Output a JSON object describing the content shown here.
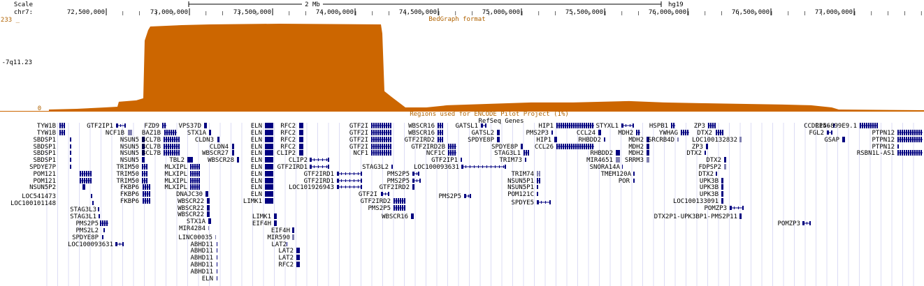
{
  "colors": {
    "signal": "#cc6600",
    "gene": "#000080",
    "gene_light": "#8080b0",
    "grid": "#dcdcf5",
    "text_orange": "#b06200"
  },
  "ruler": {
    "scale_label": "Scale",
    "scale_value": "2 Mb",
    "assembly": "hg19",
    "chrom_label": "chr7:",
    "ticks": [
      "72,500,000",
      "73,000,000",
      "73,500,000",
      "74,000,000",
      "74,500,000",
      "75,000,000",
      "75,500,000",
      "76,000,000",
      "76,500,000",
      "77,000,000"
    ]
  },
  "bedgraph": {
    "track_name": "-7q11.23",
    "max_label": "233 _",
    "min_label": "0 _",
    "format_label": "BedGraph format",
    "profile": [
      [
        70,
        2
      ],
      [
        110,
        3
      ],
      [
        130,
        4
      ],
      [
        150,
        5
      ],
      [
        168,
        6
      ],
      [
        170,
        13
      ],
      [
        195,
        15
      ],
      [
        205,
        18
      ],
      [
        207,
        100
      ],
      [
        212,
        115
      ],
      [
        215,
        120
      ],
      [
        260,
        122
      ],
      [
        300,
        123
      ],
      [
        400,
        124
      ],
      [
        545,
        123
      ],
      [
        547,
        110
      ],
      [
        550,
        28
      ],
      [
        560,
        20
      ],
      [
        580,
        5
      ],
      [
        610,
        5
      ],
      [
        640,
        8
      ],
      [
        700,
        10
      ],
      [
        760,
        12
      ],
      [
        820,
        12
      ],
      [
        860,
        13
      ],
      [
        900,
        14
      ],
      [
        950,
        12
      ],
      [
        1000,
        11
      ],
      [
        1060,
        10
      ],
      [
        1120,
        9
      ],
      [
        1160,
        8
      ],
      [
        1190,
        5
      ],
      [
        1200,
        2
      ],
      [
        1322,
        1
      ]
    ]
  },
  "encode_label": "Regions used for ENCODE Pilot Project (1%)",
  "refseq_label": "RefSeq Genes",
  "genes": [
    {
      "name": "TYW1B",
      "c": 0
    },
    {
      "name": "TYW1B",
      "c": 0
    },
    {
      "name": "SBDSP1",
      "c": 0
    },
    {
      "name": "SBDSP1",
      "c": 0
    },
    {
      "name": "SBDSP1",
      "c": 0
    },
    {
      "name": "SBDSP1",
      "c": 0
    },
    {
      "name": "SPDYE7P",
      "c": 0
    },
    {
      "name": "POM121",
      "c": 0
    },
    {
      "name": "POM121",
      "c": 0
    },
    {
      "name": "NSUN5P2",
      "c": 0
    },
    {
      "name": "LOC541473",
      "c": 0
    },
    {
      "name": "LOC100101148",
      "c": 0
    },
    {
      "name": "STAG3L3",
      "c": 0
    },
    {
      "name": "STAG3L1",
      "c": 0
    },
    {
      "name": "PMS2P5",
      "c": 0
    },
    {
      "name": "PMS2L2",
      "c": 0
    },
    {
      "name": "SPDYE8P",
      "c": 0
    },
    {
      "name": "LOC100093631",
      "c": 0
    },
    {
      "name": "GTF2IP1",
      "c": 0
    },
    {
      "name": "NCF1B",
      "c": 1
    },
    {
      "name": "NSUN5",
      "c": 0
    },
    {
      "name": "NSUN5",
      "c": 0
    },
    {
      "name": "NSUN5",
      "c": 0
    },
    {
      "name": "NSUN5",
      "c": 0
    },
    {
      "name": "TRIM50",
      "c": 0
    },
    {
      "name": "TRIM50",
      "c": 0
    },
    {
      "name": "TRIM50",
      "c": 0
    },
    {
      "name": "FKBP6",
      "c": 0
    },
    {
      "name": "FKBP6",
      "c": 0
    },
    {
      "name": "FKBP6",
      "c": 0
    },
    {
      "name": "FZD9",
      "c": 0
    },
    {
      "name": "BAZ1B",
      "c": 0
    },
    {
      "name": "BCL7B",
      "c": 0
    },
    {
      "name": "BCL7B",
      "c": 0
    },
    {
      "name": "BCL7B",
      "c": 0
    },
    {
      "name": "TBL2",
      "c": 0
    },
    {
      "name": "MLXIPL",
      "c": 0
    },
    {
      "name": "MLXIPL",
      "c": 0
    },
    {
      "name": "MLXIPL",
      "c": 0
    },
    {
      "name": "MLXIPL",
      "c": 0
    },
    {
      "name": "DNAJC30",
      "c": 0
    },
    {
      "name": "VPS37D",
      "c": 0
    },
    {
      "name": "STX1A",
      "c": 0
    },
    {
      "name": "CLDN3",
      "c": 0
    },
    {
      "name": "CLDN4",
      "c": 0
    },
    {
      "name": "WBSCR27",
      "c": 0
    },
    {
      "name": "WBSCR28",
      "c": 0
    },
    {
      "name": "WBSCR22",
      "c": 0
    },
    {
      "name": "WBSCR22",
      "c": 0
    },
    {
      "name": "WBSCR22",
      "c": 0
    },
    {
      "name": "STX1A",
      "c": 0
    },
    {
      "name": "MIR4284",
      "c": 1
    },
    {
      "name": "LINC00035",
      "c": 1
    },
    {
      "name": "ABHD11",
      "c": 0
    },
    {
      "name": "ABHD11",
      "c": 0
    },
    {
      "name": "ABHD11",
      "c": 0
    },
    {
      "name": "ABHD11",
      "c": 0
    },
    {
      "name": "ABHD11",
      "c": 0
    },
    {
      "name": "ELN",
      "c": 0
    },
    {
      "name": "ELN",
      "c": 0
    },
    {
      "name": "ELN",
      "c": 0
    },
    {
      "name": "ELN",
      "c": 0
    },
    {
      "name": "ELN",
      "c": 0
    },
    {
      "name": "ELN",
      "c": 0
    },
    {
      "name": "ELN",
      "c": 0
    },
    {
      "name": "ELN",
      "c": 0
    },
    {
      "name": "ELN",
      "c": 0
    },
    {
      "name": "ELN",
      "c": 0
    },
    {
      "name": "ELN",
      "c": 0
    },
    {
      "name": "ELN",
      "c": 0
    },
    {
      "name": "LIMK1",
      "c": 0
    },
    {
      "name": "LIMK1",
      "c": 0
    },
    {
      "name": "EIF4H",
      "c": 0
    },
    {
      "name": "EIF4H",
      "c": 0
    },
    {
      "name": "MIR590",
      "c": 1
    },
    {
      "name": "LAT2",
      "c": 0
    },
    {
      "name": "LAT2",
      "c": 0
    },
    {
      "name": "LAT2",
      "c": 0
    },
    {
      "name": "RFC2",
      "c": 0
    },
    {
      "name": "RFC2",
      "c": 0
    },
    {
      "name": "RFC2",
      "c": 0
    },
    {
      "name": "RFC2",
      "c": 0
    },
    {
      "name": "RFC2",
      "c": 0
    },
    {
      "name": "CLIP2",
      "c": 0
    },
    {
      "name": "CLIP2",
      "c": 0
    },
    {
      "name": "GTF2IRD1",
      "c": 0
    },
    {
      "name": "GTF2IRD1",
      "c": 0
    },
    {
      "name": "GTF2IRD1",
      "c": 0
    },
    {
      "name": "LOC101926943",
      "c": 0
    },
    {
      "name": "GTF2I",
      "c": 0
    },
    {
      "name": "GTF2I",
      "c": 0
    },
    {
      "name": "GTF2I",
      "c": 0
    },
    {
      "name": "GTF2I",
      "c": 0
    },
    {
      "name": "GTF2I",
      "c": 0
    },
    {
      "name": "NCF1",
      "c": 0
    },
    {
      "name": "STAG3L2",
      "c": 0
    },
    {
      "name": "PMS2P5",
      "c": 0
    },
    {
      "name": "PMS2P5",
      "c": 0
    },
    {
      "name": "GTF2IRD2",
      "c": 0
    },
    {
      "name": "GTF2IRD2",
      "c": 0
    },
    {
      "name": "PMS2P5",
      "c": 0
    },
    {
      "name": "WBSCR16",
      "c": 0
    },
    {
      "name": "WBSCR16",
      "c": 0
    },
    {
      "name": "WBSCR16",
      "c": 0
    },
    {
      "name": "GTF2IRD2",
      "c": 0
    },
    {
      "name": "GTF2IRD2B",
      "c": 0
    },
    {
      "name": "NCF1C",
      "c": 0
    },
    {
      "name": "GTF2IP1",
      "c": 0
    },
    {
      "name": "LOC100093631",
      "c": 0
    },
    {
      "name": "PMS2P5",
      "c": 0
    },
    {
      "name": "GATSL1",
      "c": 0
    },
    {
      "name": "GATSL2",
      "c": 0
    },
    {
      "name": "SPDYE8P",
      "c": 0
    },
    {
      "name": "SPDYE8P",
      "c": 0
    },
    {
      "name": "STAG3L1",
      "c": 0
    },
    {
      "name": "TRIM73",
      "c": 0
    },
    {
      "name": "TRIM74",
      "c": 1
    },
    {
      "name": "NSUN5P1",
      "c": 0
    },
    {
      "name": "NSUN5P1",
      "c": 0
    },
    {
      "name": "POM121C",
      "c": 0
    },
    {
      "name": "SPDYE5",
      "c": 0
    },
    {
      "name": "PMS2P3",
      "c": 0
    },
    {
      "name": "HIP1",
      "c": 0
    },
    {
      "name": "HIP1",
      "c": 0
    },
    {
      "name": "CCL26",
      "c": 0
    },
    {
      "name": "CCL24",
      "c": 0
    },
    {
      "name": "RHBDD2",
      "c": 0
    },
    {
      "name": "RHBDD2",
      "c": 0
    },
    {
      "name": "MIR4651",
      "c": 1
    },
    {
      "name": "SNORA14A",
      "c": 0
    },
    {
      "name": "TMEM120A",
      "c": 0
    },
    {
      "name": "POR",
      "c": 0
    },
    {
      "name": "STYXL1",
      "c": 0
    },
    {
      "name": "MDH2",
      "c": 0
    },
    {
      "name": "MDH2",
      "c": 0
    },
    {
      "name": "MDH2",
      "c": 0
    },
    {
      "name": "MDH2",
      "c": 0
    },
    {
      "name": "SRRM3",
      "c": 1
    },
    {
      "name": "HSPB1",
      "c": 0
    },
    {
      "name": "YWHAG",
      "c": 0
    },
    {
      "name": "SRCRB4D",
      "c": 1
    },
    {
      "name": "ZP3",
      "c": 0
    },
    {
      "name": "ZP3",
      "c": 0
    },
    {
      "name": "DTX2",
      "c": 0
    },
    {
      "name": "DTX2",
      "c": 0
    },
    {
      "name": "DTX2",
      "c": 0
    },
    {
      "name": "FDPSP2",
      "c": 1
    },
    {
      "name": "DTX2",
      "c": 0
    },
    {
      "name": "UPK3B",
      "c": 0
    },
    {
      "name": "UPK3B",
      "c": 0
    },
    {
      "name": "UPK3B",
      "c": 0
    },
    {
      "name": "LOC100133091",
      "c": 0
    },
    {
      "name": "POMZP3",
      "c": 0
    },
    {
      "name": "DTX2P1-UPK3BP1-PMS2P11",
      "c": 0
    },
    {
      "name": "POMZP3",
      "c": 0
    },
    {
      "name": "LOC100132832",
      "c": 1
    },
    {
      "name": "CCDC146",
      "c": 0
    },
    {
      "name": "FGL2",
      "c": 0
    },
    {
      "name": "GSAP",
      "c": 0
    },
    {
      "name": "RP5-899E9.1",
      "c": 0
    },
    {
      "name": "PTPN12",
      "c": 0
    },
    {
      "name": "PTPN12",
      "c": 0
    },
    {
      "name": "PTPN12",
      "c": 0
    },
    {
      "name": "RSBN1L-AS1",
      "c": 0
    }
  ]
}
